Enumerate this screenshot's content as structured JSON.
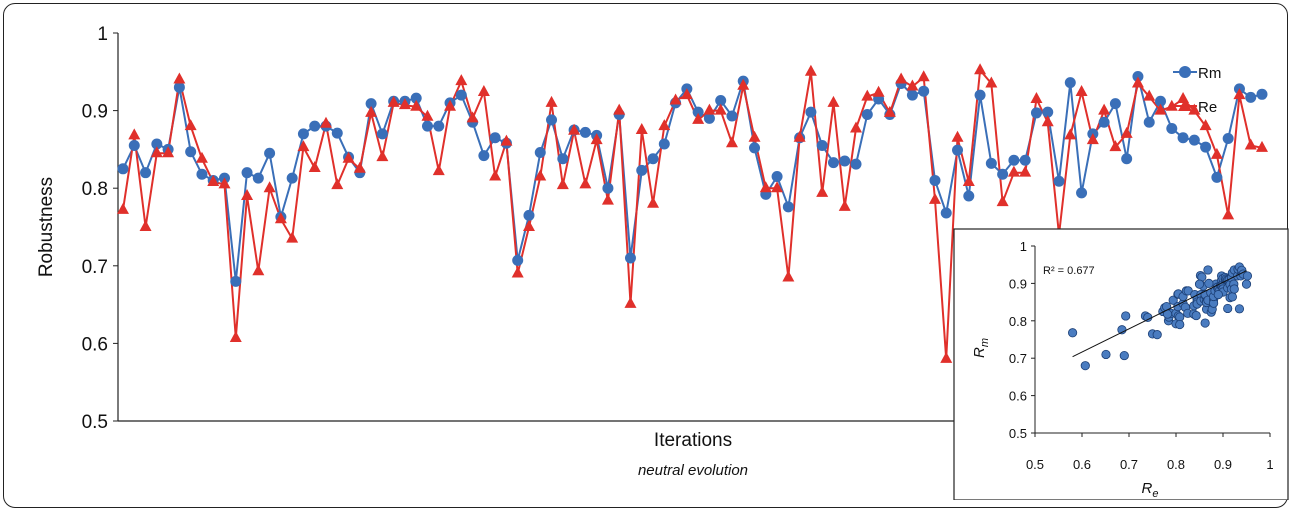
{
  "chart_data": [
    {
      "type": "line",
      "title": "",
      "xlabel": "Iterations",
      "subtitle": "neutral evolution",
      "ylabel": "Robustness",
      "ylim": [
        0.5,
        1
      ],
      "yticks": [
        "0.5",
        "0.6",
        "0.7",
        "0.8",
        "0.9",
        "1"
      ],
      "grid": false,
      "legend_position": "top-right",
      "series": [
        {
          "name": "Rm",
          "color": "#3a6fb8",
          "marker": "circle",
          "values": [
            0.825,
            0.855,
            0.82,
            0.857,
            0.85,
            0.93,
            0.847,
            0.818,
            0.81,
            0.813,
            0.68,
            0.82,
            0.813,
            0.845,
            0.763,
            0.813,
            0.87,
            0.88,
            0.88,
            0.871,
            0.84,
            0.82,
            0.909,
            0.87,
            0.912,
            0.912,
            0.916,
            0.88,
            0.88,
            0.91,
            0.92,
            0.885,
            0.842,
            0.865,
            0.858,
            0.707,
            0.765,
            0.846,
            0.888,
            0.838,
            0.875,
            0.872,
            0.868,
            0.8,
            0.895,
            0.71,
            0.823,
            0.838,
            0.857,
            0.91,
            0.928,
            0.898,
            0.89,
            0.913,
            0.893,
            0.938,
            0.852,
            0.792,
            0.815,
            0.776,
            0.865,
            0.898,
            0.855,
            0.833,
            0.835,
            0.831,
            0.895,
            0.915,
            0.895,
            0.935,
            0.92,
            0.925,
            0.81,
            0.768,
            0.849,
            0.79,
            0.92,
            0.832,
            0.818,
            0.836,
            0.836,
            0.897,
            0.898,
            0.809,
            0.936,
            0.794,
            0.87,
            0.885,
            0.909,
            0.838,
            0.944,
            0.885,
            0.912,
            0.877,
            0.865,
            0.862,
            0.853,
            0.814,
            0.864,
            0.928,
            0.917,
            0.921
          ]
        },
        {
          "name": "Re",
          "color": "#e0302b",
          "marker": "triangle",
          "values": [
            0.772,
            0.868,
            0.75,
            0.845,
            0.845,
            0.94,
            0.88,
            0.838,
            0.808,
            0.805,
            0.607,
            0.79,
            0.693,
            0.8,
            0.76,
            0.735,
            0.853,
            0.826,
            0.883,
            0.804,
            0.838,
            0.825,
            0.897,
            0.84,
            0.91,
            0.907,
            0.905,
            0.892,
            0.822,
            0.905,
            0.938,
            0.89,
            0.924,
            0.815,
            0.86,
            0.69,
            0.75,
            0.815,
            0.91,
            0.804,
            0.874,
            0.805,
            0.862,
            0.784,
            0.9,
            0.651,
            0.875,
            0.78,
            0.88,
            0.913,
            0.92,
            0.888,
            0.9,
            0.9,
            0.858,
            0.932,
            0.865,
            0.8,
            0.8,
            0.685,
            0.865,
            0.95,
            0.794,
            0.91,
            0.776,
            0.877,
            0.918,
            0.923,
            0.897,
            0.94,
            0.931,
            0.943,
            0.785,
            0.58,
            0.865,
            0.808,
            0.952,
            0.935,
            0.782,
            0.82,
            0.82,
            0.915,
            0.885,
            0.74,
            0.868,
            0.924,
            0.862,
            0.9,
            0.853,
            0.87,
            0.935,
            0.918,
            0.9,
            0.905,
            0.915,
            0.9,
            0.88,
            0.843,
            0.765,
            0.92,
            0.855,
            0.852
          ]
        }
      ]
    },
    {
      "type": "scatter",
      "title": "",
      "xlabel": "R",
      "xlabel_sub": "e",
      "ylabel": "R",
      "ylabel_sub": "m",
      "xlim": [
        0.5,
        1
      ],
      "ylim": [
        0.5,
        1
      ],
      "xticks": [
        "0.5",
        "0.6",
        "0.7",
        "0.8",
        "0.9",
        "1"
      ],
      "yticks": [
        "0.5",
        "0.6",
        "0.7",
        "0.8",
        "0.9",
        "1"
      ],
      "annotation": "R² = 0.677",
      "trendline": {
        "x": [
          0.58,
          0.95
        ],
        "y": [
          0.704,
          0.934
        ]
      },
      "marker_color": "#4a7cc0",
      "points": [
        [
          0.58,
          0.768
        ],
        [
          0.607,
          0.68
        ],
        [
          0.651,
          0.71
        ],
        [
          0.69,
          0.707
        ],
        [
          0.685,
          0.776
        ],
        [
          0.693,
          0.813
        ],
        [
          0.735,
          0.813
        ],
        [
          0.74,
          0.809
        ],
        [
          0.75,
          0.765
        ],
        [
          0.76,
          0.763
        ],
        [
          0.772,
          0.825
        ],
        [
          0.776,
          0.835
        ],
        [
          0.784,
          0.8
        ],
        [
          0.785,
          0.81
        ],
        [
          0.79,
          0.82
        ],
        [
          0.78,
          0.838
        ],
        [
          0.782,
          0.818
        ],
        [
          0.794,
          0.855
        ],
        [
          0.8,
          0.792
        ],
        [
          0.8,
          0.82
        ],
        [
          0.804,
          0.838
        ],
        [
          0.804,
          0.871
        ],
        [
          0.805,
          0.872
        ],
        [
          0.805,
          0.813
        ],
        [
          0.808,
          0.81
        ],
        [
          0.808,
          0.79
        ],
        [
          0.815,
          0.846
        ],
        [
          0.815,
          0.865
        ],
        [
          0.82,
          0.836
        ],
        [
          0.82,
          0.836
        ],
        [
          0.822,
          0.88
        ],
        [
          0.825,
          0.82
        ],
        [
          0.826,
          0.88
        ],
        [
          0.838,
          0.818
        ],
        [
          0.838,
          0.84
        ],
        [
          0.84,
          0.87
        ],
        [
          0.843,
          0.814
        ],
        [
          0.845,
          0.857
        ],
        [
          0.845,
          0.85
        ],
        [
          0.845,
          0.845
        ],
        [
          0.852,
          0.921
        ],
        [
          0.853,
          0.87
        ],
        [
          0.853,
          0.853
        ],
        [
          0.855,
          0.917
        ],
        [
          0.858,
          0.893
        ],
        [
          0.86,
          0.858
        ],
        [
          0.862,
          0.868
        ],
        [
          0.862,
          0.87
        ],
        [
          0.862,
          0.794
        ],
        [
          0.865,
          0.852
        ],
        [
          0.865,
          0.831
        ],
        [
          0.865,
          0.849
        ],
        [
          0.868,
          0.855
        ],
        [
          0.868,
          0.936
        ],
        [
          0.874,
          0.875
        ],
        [
          0.875,
          0.823
        ],
        [
          0.877,
          0.831
        ],
        [
          0.88,
          0.857
        ],
        [
          0.88,
          0.847
        ],
        [
          0.88,
          0.865
        ],
        [
          0.883,
          0.88
        ],
        [
          0.885,
          0.898
        ],
        [
          0.888,
          0.89
        ],
        [
          0.89,
          0.885
        ],
        [
          0.892,
          0.88
        ],
        [
          0.895,
          0.895
        ],
        [
          0.897,
          0.909
        ],
        [
          0.897,
          0.92
        ],
        [
          0.897,
          0.895
        ],
        [
          0.9,
          0.895
        ],
        [
          0.9,
          0.898
        ],
        [
          0.9,
          0.913
        ],
        [
          0.9,
          0.885
        ],
        [
          0.9,
          0.877
        ],
        [
          0.905,
          0.91
        ],
        [
          0.905,
          0.912
        ],
        [
          0.905,
          0.916
        ],
        [
          0.907,
          0.912
        ],
        [
          0.91,
          0.888
        ],
        [
          0.91,
          0.91
        ],
        [
          0.91,
          0.833
        ],
        [
          0.913,
          0.91
        ],
        [
          0.915,
          0.862
        ],
        [
          0.915,
          0.897
        ],
        [
          0.918,
          0.915
        ],
        [
          0.918,
          0.885
        ],
        [
          0.92,
          0.928
        ],
        [
          0.92,
          0.864
        ],
        [
          0.923,
          0.898
        ],
        [
          0.924,
          0.885
        ],
        [
          0.924,
          0.936
        ],
        [
          0.931,
          0.92
        ],
        [
          0.932,
          0.938
        ],
        [
          0.935,
          0.944
        ],
        [
          0.935,
          0.832
        ],
        [
          0.938,
          0.92
        ],
        [
          0.94,
          0.93
        ],
        [
          0.94,
          0.935
        ],
        [
          0.943,
          0.925
        ],
        [
          0.95,
          0.898
        ],
        [
          0.952,
          0.92
        ],
        [
          0.85,
          0.898
        ],
        [
          0.87,
          0.9
        ],
        [
          0.89,
          0.87
        ]
      ]
    }
  ]
}
